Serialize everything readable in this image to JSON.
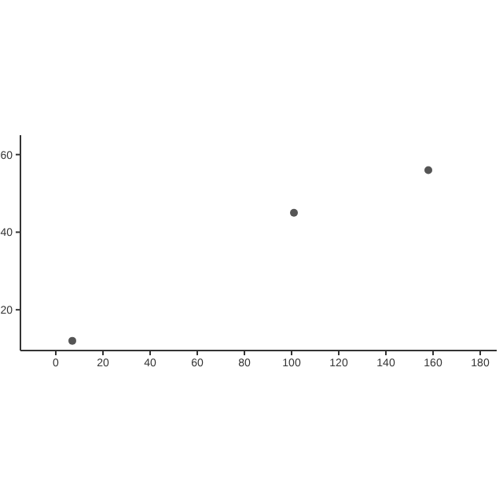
{
  "chart_data": {
    "type": "scatter",
    "x": [
      7,
      101,
      158
    ],
    "values": [
      12,
      45,
      56
    ],
    "color": "#555555",
    "xlim": [
      -15,
      187
    ],
    "xticks": [
      0,
      20,
      40,
      60,
      80,
      100,
      120,
      140,
      160,
      180
    ],
    "ylim": [
      9.5,
      65
    ],
    "yticks": [
      20,
      40,
      60
    ],
    "grid": false,
    "marker": "circle"
  }
}
